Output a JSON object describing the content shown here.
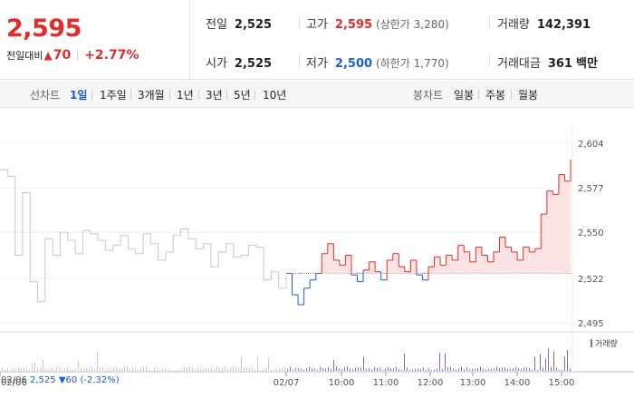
{
  "header": {
    "price": "2,595",
    "change_label": "전일대비",
    "change_arrow": "▲",
    "change_value": "70",
    "change_percent": "+2.77%",
    "stats": {
      "prev_close": {
        "label": "전일",
        "value": "2,525"
      },
      "open": {
        "label": "시가",
        "value": "2,525"
      },
      "high": {
        "label": "고가",
        "value": "2,595",
        "limit": "(상한가 3,280)"
      },
      "low": {
        "label": "저가",
        "value": "2,500",
        "limit": "(하한가 1,770)"
      },
      "volume": {
        "label": "거래량",
        "value": "142,391"
      },
      "amount": {
        "label": "거래대금",
        "value": "361",
        "unit": "백만"
      }
    }
  },
  "toolbar": {
    "line_label": "선차트",
    "line_items": [
      "1일",
      "1주일",
      "3개월",
      "1년",
      "3년",
      "5년",
      "10년"
    ],
    "active_index": 0,
    "candle_label": "봉차트",
    "candle_items": [
      "일봉",
      "주봉",
      "월봉"
    ]
  },
  "chart_data": {
    "type": "line",
    "y_ticks": [
      "2,604",
      "2,577",
      "2,550",
      "2,522",
      "2,495"
    ],
    "ylim": [
      2495,
      2604
    ],
    "reference_line": 2525,
    "x_ticks": [
      "02/06",
      "02/07",
      "10:00",
      "11:00",
      "12:00",
      "13:00",
      "14:00",
      "15:00"
    ],
    "legend": "거래량",
    "colors": {
      "prev_day": "#c8c8c8",
      "up": "#e22b2b",
      "down": "#1b5fd1",
      "fill": "#fbe3e3",
      "volume": "#7a6cc7"
    },
    "series": [
      {
        "values": [
          2588,
          2584,
          2536,
          2574,
          2520,
          2508,
          2546,
          2536,
          2550,
          2545,
          2537,
          2551,
          2549,
          2545,
          2539,
          2542,
          2548,
          2540,
          2537,
          2549,
          2543,
          2533,
          2538,
          2548,
          2552,
          2546,
          2540,
          2543,
          2529,
          2538,
          2543,
          2535,
          2536,
          2542,
          2541,
          2521,
          2526,
          2516,
          2524
        ]
      },
      {
        "values": [
          2525,
          2512,
          2506,
          2516,
          2521,
          2525,
          2537,
          2543,
          2533,
          2530,
          2536,
          2524,
          2520,
          2527,
          2532,
          2526,
          2521,
          2533,
          2537,
          2529,
          2526,
          2533,
          2524,
          2521,
          2529,
          2535,
          2530,
          2536,
          2533,
          2542,
          2538,
          2532,
          2541,
          2536,
          2532,
          2538,
          2547,
          2541,
          2538,
          2533,
          2541,
          2538,
          2540,
          2561,
          2575,
          2573,
          2585,
          2581,
          2594
        ]
      }
    ]
  },
  "bottom": {
    "date": "02/06",
    "close": "2,525",
    "arrow": "▼",
    "change": "60",
    "pct": "(-2.32%)"
  }
}
